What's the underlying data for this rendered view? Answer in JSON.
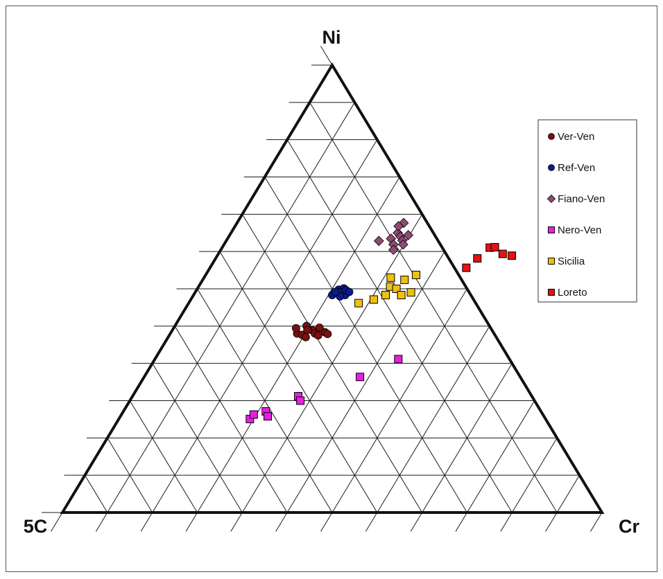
{
  "chart_data": {
    "type": "scatter",
    "subtype": "ternary",
    "title": "",
    "vertices": {
      "top": "Ni",
      "bottom_left": "5C",
      "bottom_right": "Cr"
    },
    "grid": true,
    "grid_divisions": 12,
    "legend_position": "top-right",
    "series": [
      {
        "name": "Ver-Ven",
        "marker": "circle",
        "color": "#7B1010",
        "points": [
          [
            0.235,
            0.4
          ],
          [
            0.227,
            0.412
          ],
          [
            0.246,
            0.397
          ],
          [
            0.255,
            0.392
          ],
          [
            0.26,
            0.407
          ],
          [
            0.268,
            0.4
          ],
          [
            0.276,
            0.396
          ],
          [
            0.285,
            0.403
          ],
          [
            0.292,
            0.399
          ],
          [
            0.244,
            0.417
          ],
          [
            0.27,
            0.413
          ],
          [
            0.25,
            0.408
          ]
        ]
      },
      {
        "name": "Ref-Ven",
        "marker": "circle",
        "color": "#0A1A8C",
        "points": [
          [
            0.257,
            0.486
          ],
          [
            0.263,
            0.498
          ],
          [
            0.271,
            0.501
          ],
          [
            0.276,
            0.489
          ],
          [
            0.268,
            0.492
          ],
          [
            0.281,
            0.486
          ],
          [
            0.277,
            0.497
          ],
          [
            0.285,
            0.493
          ],
          [
            0.273,
            0.483
          ],
          [
            0.259,
            0.493
          ]
        ]
      },
      {
        "name": "Fiano-Ven",
        "marker": "diamond",
        "color": "#8E4A72",
        "points": [
          [
            0.283,
            0.607
          ],
          [
            0.303,
            0.612
          ],
          [
            0.309,
            0.625
          ],
          [
            0.318,
            0.617
          ],
          [
            0.326,
            0.608
          ],
          [
            0.332,
            0.599
          ],
          [
            0.314,
            0.599
          ],
          [
            0.331,
            0.62
          ],
          [
            0.32,
            0.587
          ],
          [
            0.309,
            0.647
          ],
          [
            0.303,
            0.64
          ]
        ]
      },
      {
        "name": "Nero-Ven",
        "marker": "square",
        "color": "#E81EE0",
        "points": [
          [
            0.243,
            0.209
          ],
          [
            0.264,
            0.226
          ],
          [
            0.273,
            0.215
          ],
          [
            0.245,
            0.219
          ],
          [
            0.307,
            0.26
          ],
          [
            0.316,
            0.25
          ],
          [
            0.4,
            0.303
          ],
          [
            0.451,
            0.343
          ]
        ]
      },
      {
        "name": "Sicilia",
        "marker": "square",
        "color": "#F0C010",
        "points": [
          [
            0.315,
            0.468
          ],
          [
            0.339,
            0.476
          ],
          [
            0.356,
            0.486
          ],
          [
            0.355,
            0.505
          ],
          [
            0.369,
            0.5
          ],
          [
            0.385,
            0.486
          ],
          [
            0.4,
            0.492
          ],
          [
            0.374,
            0.52
          ],
          [
            0.39,
            0.531
          ],
          [
            0.346,
            0.525
          ]
        ]
      },
      {
        "name": "Loreto",
        "marker": "square",
        "color": "#E41212",
        "points": [
          [
            0.475,
            0.547
          ],
          [
            0.485,
            0.568
          ],
          [
            0.496,
            0.592
          ],
          [
            0.505,
            0.593
          ],
          [
            0.527,
            0.578
          ],
          [
            0.546,
            0.574
          ]
        ]
      }
    ]
  }
}
